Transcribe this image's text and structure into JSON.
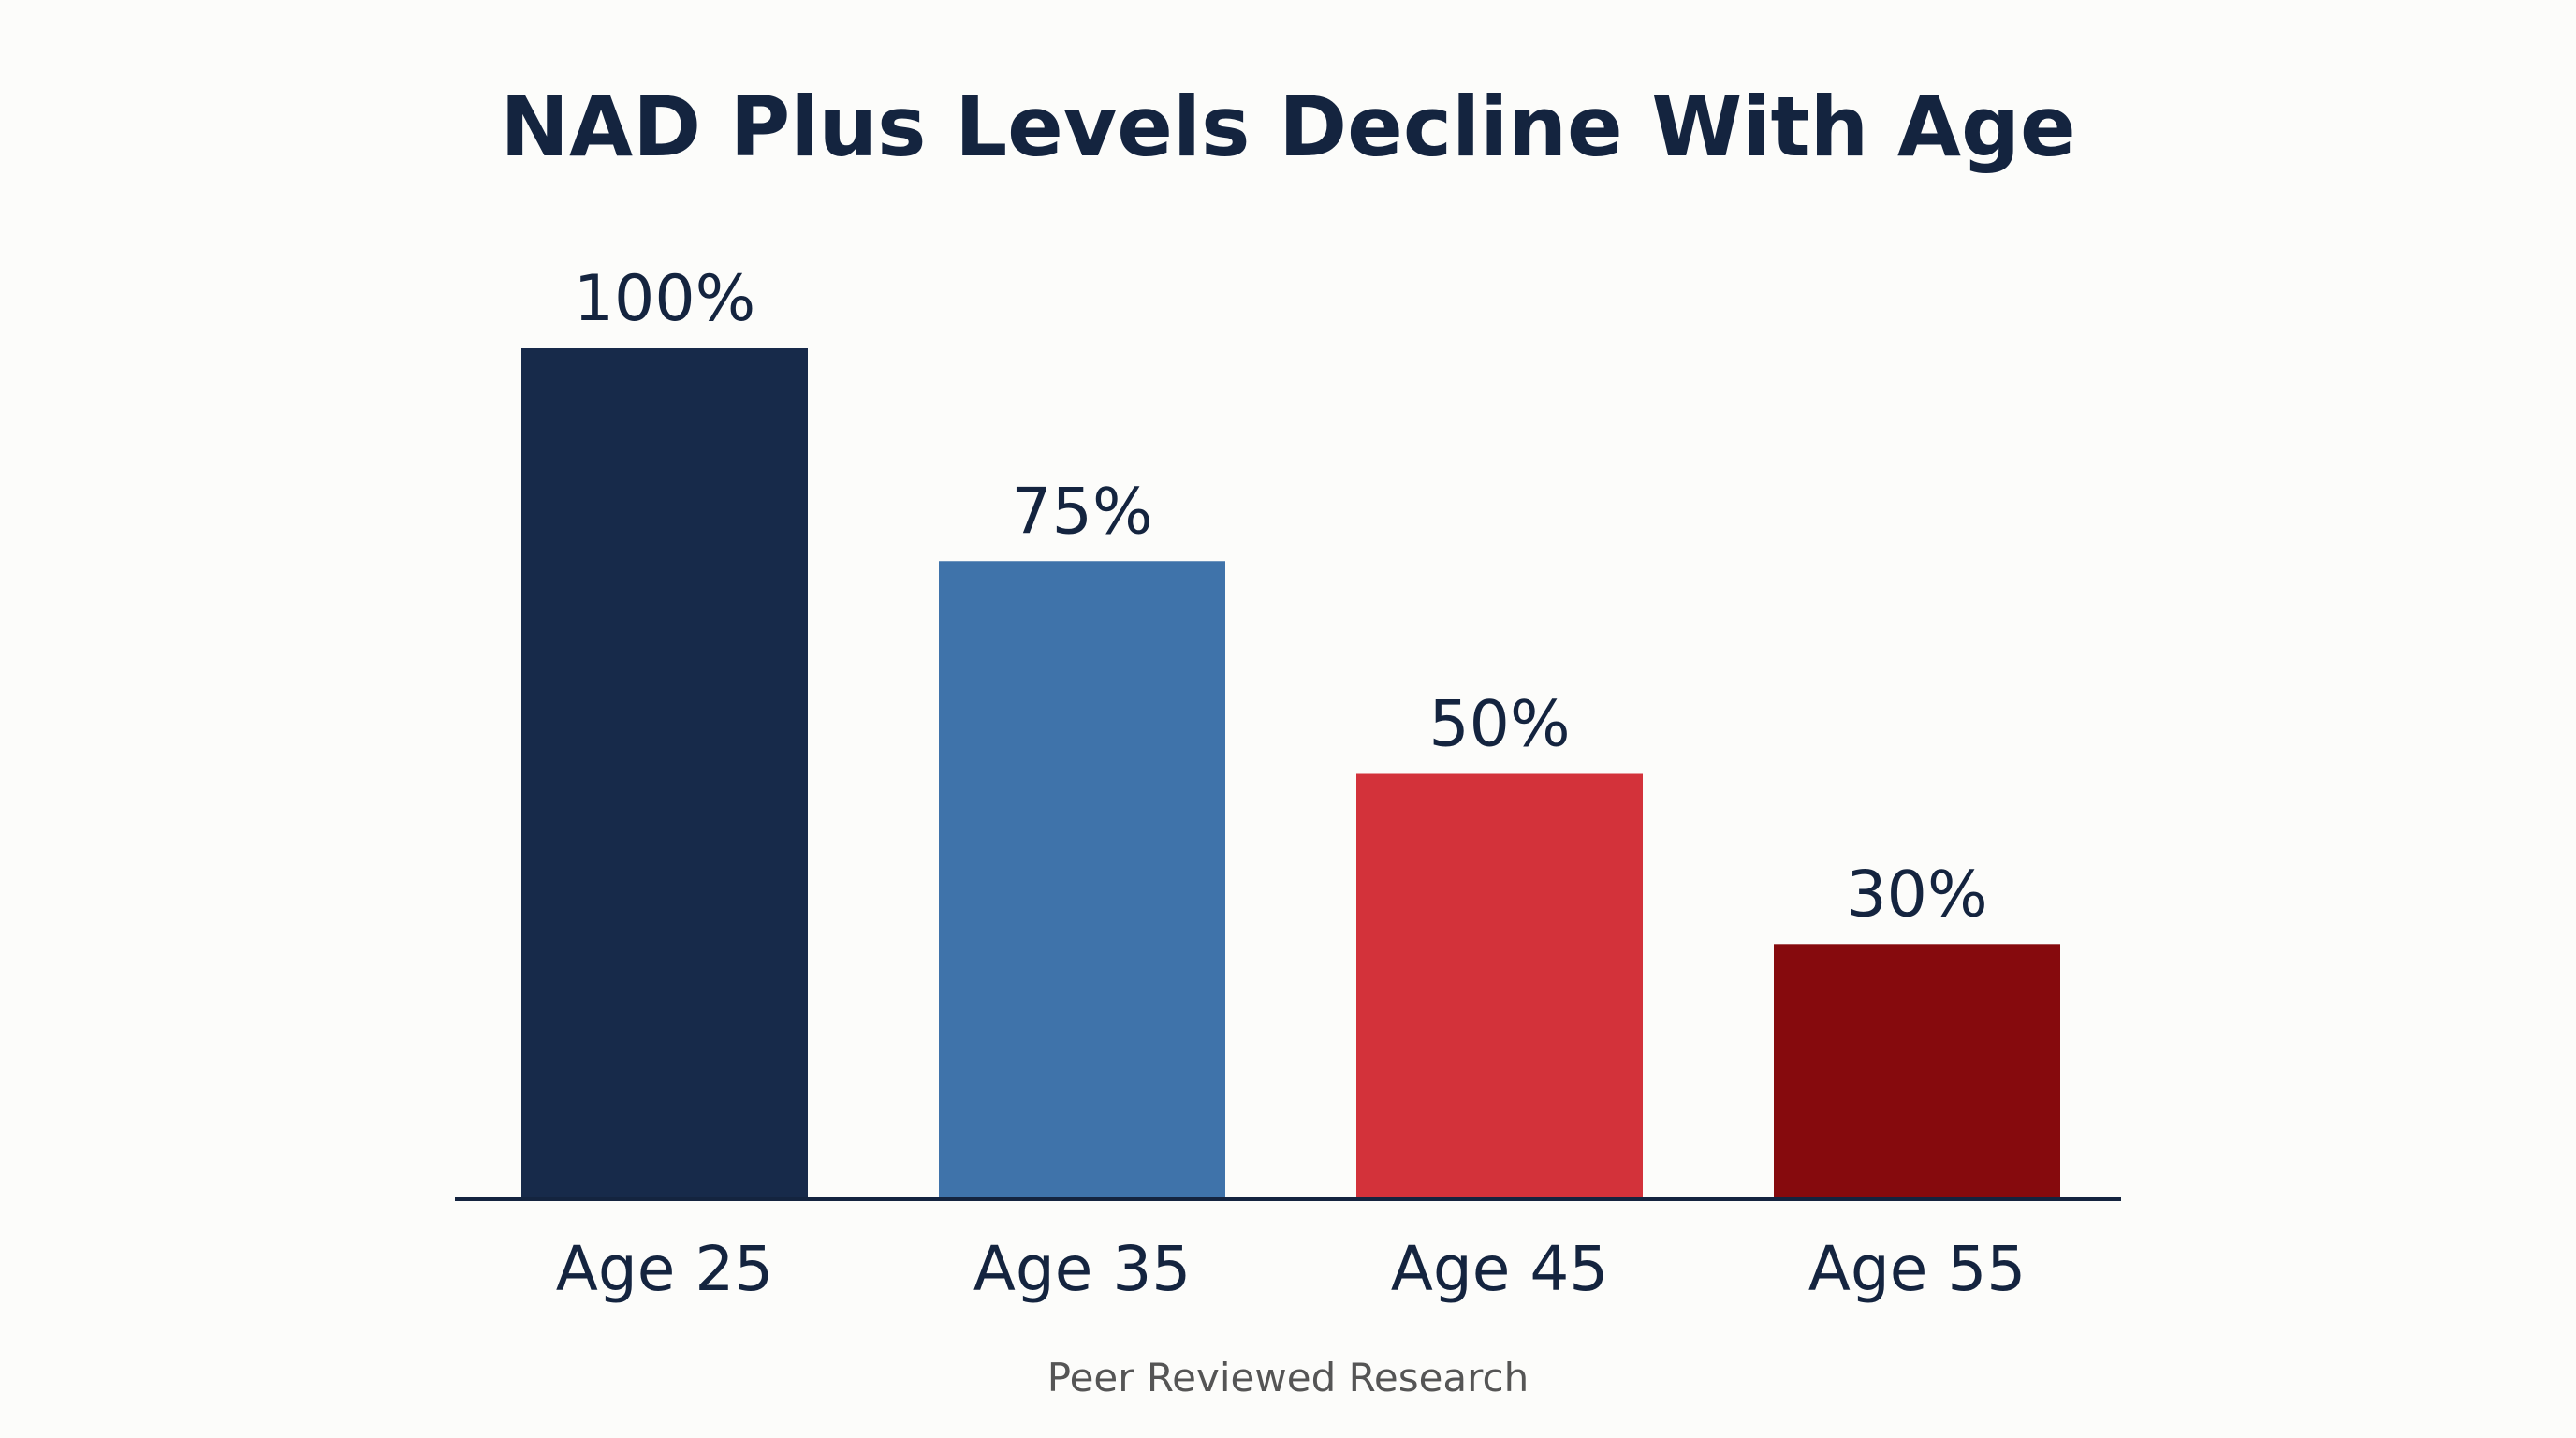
{
  "chart_data": {
    "type": "bar",
    "title": "NAD Plus Levels Decline With Age",
    "categories": [
      "Age 25",
      "Age 35",
      "Age 45",
      "Age 55"
    ],
    "values": [
      100,
      75,
      50,
      30
    ],
    "value_labels": [
      "100%",
      "75%",
      "50%",
      "30%"
    ],
    "colors": [
      "#172a4a",
      "#3f73aa",
      "#d3323a",
      "#860a0d"
    ],
    "axis_color": "#14243f",
    "ylim": [
      0,
      100
    ],
    "xlabel": "",
    "ylabel": "",
    "grid": false,
    "legend": "none"
  },
  "footer": {
    "source": "Peer Reviewed Research"
  }
}
